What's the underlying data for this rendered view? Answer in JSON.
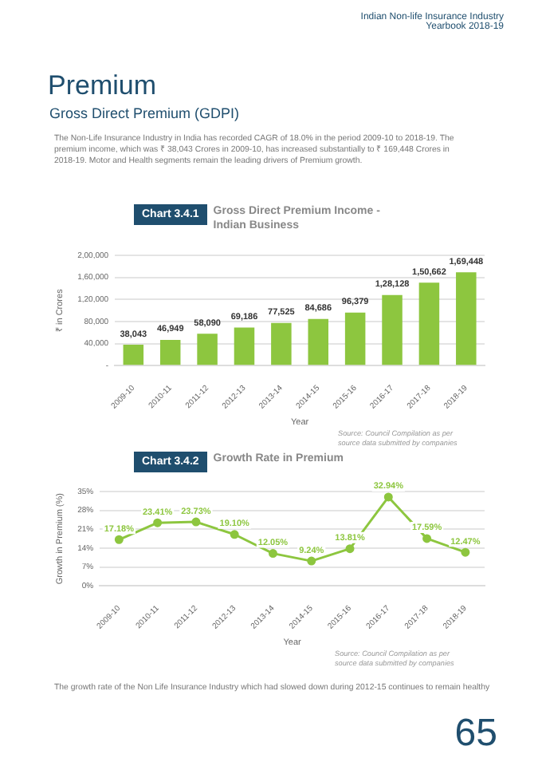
{
  "chart_data": [
    {
      "type": "bar",
      "title": "Gross Direct Premium Income - Indian Business",
      "subtitle": "Chart 3.4.1",
      "xlabel": "Year",
      "ylabel": "₹ in Crores",
      "categories": [
        "2009-10",
        "2010-11",
        "2011-12",
        "2012-13",
        "2013-14",
        "2014-15",
        "2015-16",
        "2016-17",
        "2017-18",
        "2018-19"
      ],
      "values": [
        38043,
        46949,
        58090,
        69186,
        77525,
        84686,
        96379,
        128128,
        150662,
        169448
      ],
      "value_labels": [
        "38,043",
        "46,949",
        "58,090",
        "69,186",
        "77,525",
        "84,686",
        "96,379",
        "1,28,128",
        "1,50,662",
        "1,69,448"
      ],
      "color": "#8dc63f",
      "ylim": [
        0,
        200000
      ],
      "yticks": [
        {
          "value": 0,
          "label": "-"
        },
        {
          "value": 40000,
          "label": "40,000"
        },
        {
          "value": 80000,
          "label": "80,000"
        },
        {
          "value": 120000,
          "label": "1,20,000"
        },
        {
          "value": 160000,
          "label": "1,60,000"
        },
        {
          "value": 200000,
          "label": "2,00,000"
        }
      ],
      "grid": "y",
      "legend": false,
      "annotations": [
        "Indian Non-life Insurance Industry Yearbook 2018-19",
        "Premium",
        "Gross Direct Premium (GDPI)",
        "The Non-Life Insurance Industry in India has recorded CAGR of 18.0% in the period 2009-10 to 2018-19. The premium income, which was ₹ 38,043 Crores in 2009-10, has increased substantially to ₹ 169,448 Crores in 2018-19. Motor and Health segments remain the leading drivers of Premium growth.",
        "Source: Council Compilation as per source data submitted by companies"
      ]
    },
    {
      "type": "line",
      "title": "Growth Rate in Premium",
      "subtitle": "Chart 3.4.2",
      "xlabel": "Year",
      "ylabel": "Growth in Premium (%)",
      "categories": [
        "2009-10",
        "2010-11",
        "2011-12",
        "2012-13",
        "2013-14",
        "2014-15",
        "2015-16",
        "2016-17",
        "2017-18",
        "2018-19"
      ],
      "values": [
        17.18,
        23.41,
        23.73,
        19.1,
        12.05,
        9.24,
        13.81,
        32.94,
        17.59,
        12.47
      ],
      "value_labels": [
        "17.18%",
        "23.41%",
        "23.73%",
        "19.10%",
        "12.05%",
        "9.24%",
        "13.81%",
        "32.94%",
        "17.59%",
        "12.47%"
      ],
      "color": "#8dc63f",
      "marker": "circle",
      "line_style": "solid",
      "ylim": [
        0,
        35
      ],
      "yticks": [
        {
          "value": 0,
          "label": "0%"
        },
        {
          "value": 7,
          "label": "7%"
        },
        {
          "value": 14,
          "label": "14%"
        },
        {
          "value": 21,
          "label": "21%"
        },
        {
          "value": 28,
          "label": "28%"
        },
        {
          "value": 35,
          "label": "35%"
        }
      ],
      "grid": "y",
      "legend": false,
      "annotations": [
        "Source: Council Compilation as per source data submitted by companies",
        "The growth rate of the Non Life Insurance Industry which had slowed down during 2012-15 continues to remain healthy",
        "65"
      ]
    }
  ]
}
